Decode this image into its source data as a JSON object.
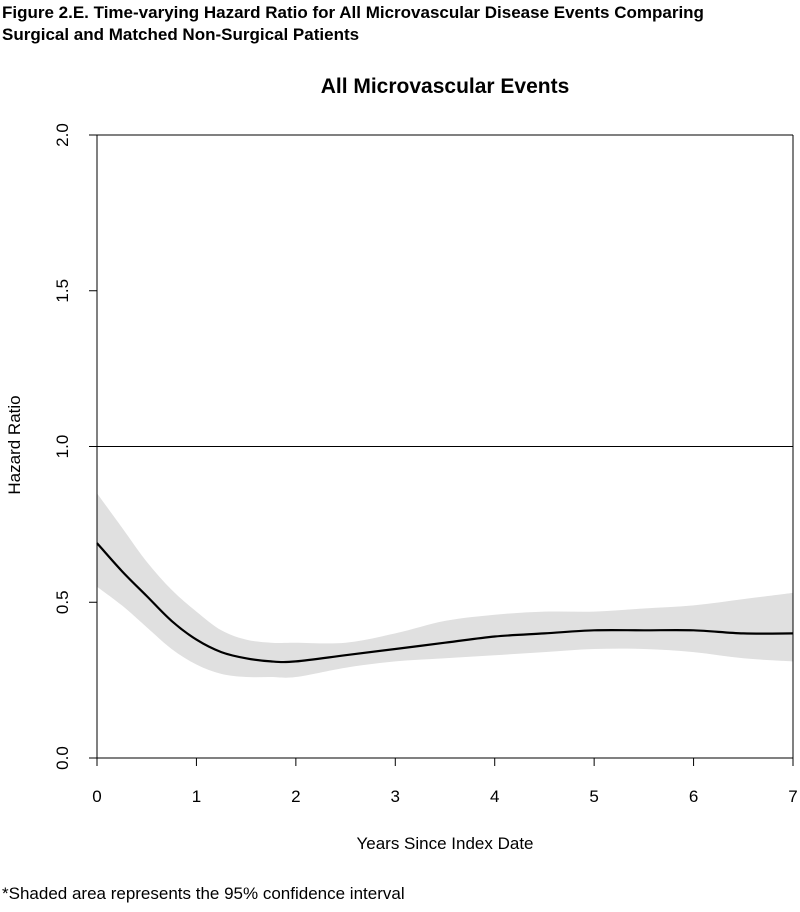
{
  "figure": {
    "caption_line1": "Figure 2.E. Time-varying Hazard Ratio for All Microvascular Disease Events Comparing",
    "caption_line2": "Surgical and Matched Non-Surgical Patients",
    "footnote": "*Shaded area represents the 95% confidence interval"
  },
  "chart_data": {
    "type": "line",
    "title": "All Microvascular Events",
    "xlabel": "Years Since Index Date",
    "ylabel": "Hazard Ratio",
    "xlim": [
      0,
      7
    ],
    "ylim": [
      0,
      2
    ],
    "x_ticks": [
      "0",
      "1",
      "2",
      "3",
      "4",
      "5",
      "6",
      "7"
    ],
    "y_ticks": [
      "0.0",
      "0.5",
      "1.0",
      "1.5",
      "2.0"
    ],
    "reference_line": 1.0,
    "grid": false,
    "x": [
      0,
      0.25,
      0.5,
      0.75,
      1,
      1.25,
      1.5,
      1.75,
      2,
      2.5,
      3,
      3.5,
      4,
      4.5,
      5,
      5.5,
      6,
      6.5,
      7
    ],
    "series": [
      {
        "values": [
          0.69,
          0.6,
          0.52,
          0.44,
          0.38,
          0.34,
          0.32,
          0.31,
          0.31,
          0.33,
          0.35,
          0.37,
          0.39,
          0.4,
          0.41,
          0.41,
          0.41,
          0.4,
          0.4
        ]
      }
    ],
    "ci_lower": [
      0.55,
      0.49,
      0.42,
      0.35,
      0.3,
      0.27,
      0.26,
      0.26,
      0.26,
      0.29,
      0.31,
      0.32,
      0.33,
      0.34,
      0.35,
      0.35,
      0.34,
      0.32,
      0.31
    ],
    "ci_upper": [
      0.85,
      0.74,
      0.63,
      0.54,
      0.47,
      0.41,
      0.38,
      0.37,
      0.37,
      0.37,
      0.4,
      0.44,
      0.46,
      0.47,
      0.47,
      0.48,
      0.49,
      0.51,
      0.53
    ],
    "colors": {
      "line": "#000000",
      "ci_band": "#e0e0e0",
      "axis": "#000000"
    }
  }
}
